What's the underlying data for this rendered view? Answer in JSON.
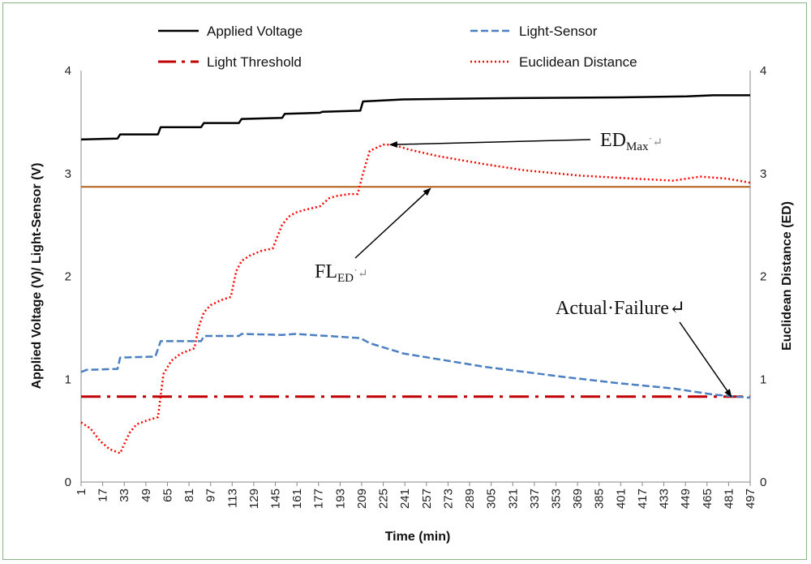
{
  "chart_data": {
    "type": "line",
    "xlabel": "Time (min)",
    "ylabel_left": "Applied Voltage (V)/ Light-Sensor (V)",
    "ylabel_right": "Euclidean Distance (ED)",
    "xlim": [
      1,
      497
    ],
    "ylim_left": [
      0,
      4
    ],
    "ylim_right": [
      0,
      4
    ],
    "yticks": [
      "0",
      "1",
      "2",
      "3",
      "4"
    ],
    "xticks": [
      "1",
      "17",
      "33",
      "49",
      "65",
      "81",
      "97",
      "113",
      "129",
      "145",
      "161",
      "177",
      "193",
      "209",
      "225",
      "241",
      "257",
      "273",
      "289",
      "305",
      "321",
      "337",
      "353",
      "369",
      "385",
      "401",
      "417",
      "433",
      "449",
      "465",
      "481",
      "497"
    ],
    "legend": [
      {
        "label": "Applied Voltage",
        "color": "#000000",
        "style": "solid"
      },
      {
        "label": "Light-Sensor",
        "color": "#4a7fc1",
        "style": "dashed"
      },
      {
        "label": "Light Threshold",
        "color": "#c00000",
        "style": "dashdot"
      },
      {
        "label": "Euclidean Distance",
        "color": "#ff0000",
        "style": "dotted"
      }
    ],
    "series": [
      {
        "name": "Applied Voltage",
        "x": [
          1,
          28,
          30,
          58,
          60,
          90,
          92,
          118,
          120,
          150,
          152,
          178,
          180,
          208,
          210,
          240,
          300,
          400,
          450,
          470,
          497
        ],
        "values": [
          3.33,
          3.34,
          3.38,
          3.38,
          3.45,
          3.45,
          3.49,
          3.49,
          3.53,
          3.54,
          3.58,
          3.59,
          3.6,
          3.61,
          3.7,
          3.72,
          3.73,
          3.74,
          3.75,
          3.76,
          3.76
        ]
      },
      {
        "name": "Light-Sensor",
        "x": [
          1,
          5,
          28,
          30,
          56,
          60,
          90,
          92,
          118,
          120,
          150,
          160,
          208,
          215,
          240,
          300,
          360,
          400,
          440,
          470,
          497
        ],
        "values": [
          1.07,
          1.09,
          1.1,
          1.21,
          1.22,
          1.37,
          1.37,
          1.42,
          1.42,
          1.44,
          1.43,
          1.44,
          1.4,
          1.35,
          1.25,
          1.12,
          1.02,
          0.96,
          0.91,
          0.85,
          0.82
        ]
      },
      {
        "name": "Light Threshold",
        "x": [
          1,
          497
        ],
        "values": [
          0.83,
          0.83
        ]
      },
      {
        "name": "Euclidean Distance",
        "x": [
          1,
          8,
          15,
          22,
          30,
          33,
          37,
          42,
          50,
          58,
          62,
          68,
          75,
          85,
          88,
          92,
          97,
          105,
          112,
          116,
          120,
          126,
          135,
          143,
          150,
          155,
          160,
          168,
          178,
          185,
          190,
          200,
          206,
          210,
          215,
          225,
          232,
          245,
          265,
          300,
          330,
          370,
          410,
          440,
          460,
          480,
          497
        ],
        "values": [
          0.58,
          0.52,
          0.4,
          0.32,
          0.28,
          0.37,
          0.48,
          0.56,
          0.6,
          0.63,
          1.05,
          1.18,
          1.25,
          1.3,
          1.5,
          1.65,
          1.72,
          1.77,
          1.8,
          2.05,
          2.15,
          2.2,
          2.25,
          2.27,
          2.5,
          2.58,
          2.62,
          2.65,
          2.68,
          2.76,
          2.78,
          2.8,
          2.8,
          3.0,
          3.22,
          3.28,
          3.28,
          3.23,
          3.17,
          3.09,
          3.03,
          2.98,
          2.95,
          2.93,
          2.97,
          2.95,
          2.91
        ]
      },
      {
        "name": "FL_ED",
        "x": [
          1,
          497
        ],
        "values": [
          2.87,
          2.87
        ],
        "color": "#b25a16"
      }
    ],
    "annotations": [
      {
        "base": "ED",
        "sub": "Max",
        "tail": "˙↵",
        "target_x": 230,
        "target_y": 3.28
      },
      {
        "base": "FL",
        "sub": "ED",
        "tail": "˙↵",
        "target_x": 260,
        "target_y": 2.87
      },
      {
        "base": "Actual",
        "sub": "",
        "tail": "·Failure↵",
        "target_x": 483,
        "target_y": 0.83
      }
    ]
  }
}
